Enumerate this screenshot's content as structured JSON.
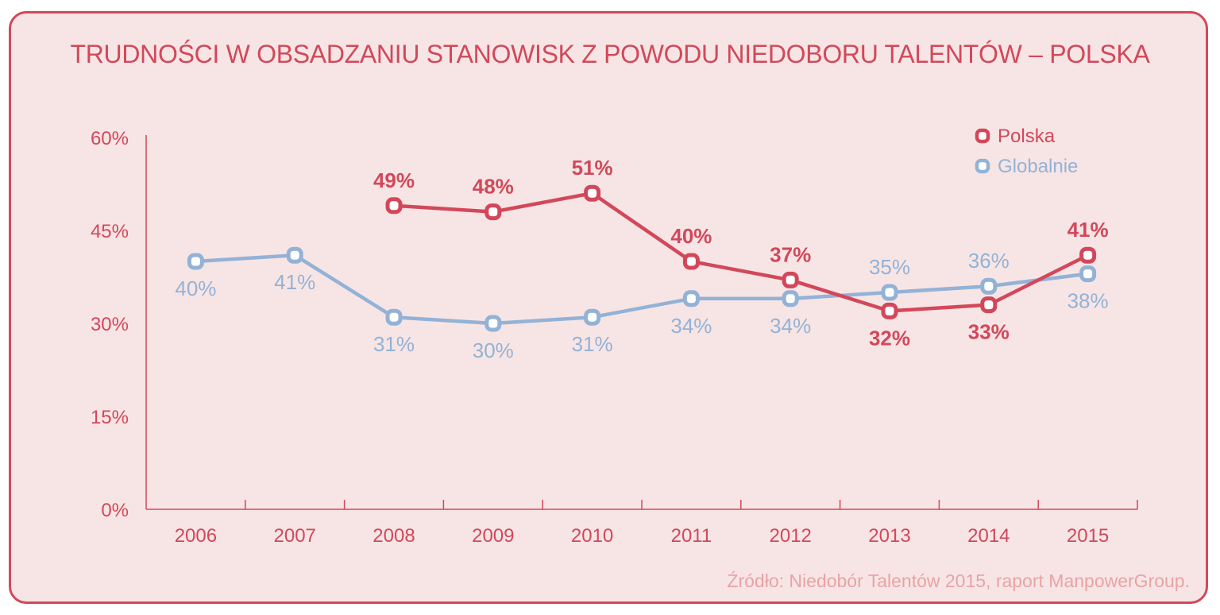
{
  "chart_data": {
    "type": "line",
    "title": "TRUDNOŚCI W OBSADZANIU STANOWISK Z POWODU NIEDOBORU TALENTÓW – POLSKA",
    "categories": [
      "2006",
      "2007",
      "2008",
      "2009",
      "2010",
      "2011",
      "2012",
      "2013",
      "2014",
      "2015"
    ],
    "ylim": [
      0,
      60
    ],
    "yticks": [
      "0%",
      "15%",
      "30%",
      "45%",
      "60%"
    ],
    "series": [
      {
        "name": "Polska",
        "color": "#d2485a",
        "values": [
          null,
          null,
          49,
          48,
          51,
          40,
          37,
          32,
          33,
          41
        ],
        "labels": [
          "",
          "",
          "49%",
          "48%",
          "51%",
          "40%",
          "37%",
          "32%",
          "33%",
          "41%"
        ],
        "label_pos": [
          "",
          "",
          "above",
          "above",
          "above",
          "above",
          "above",
          "below",
          "below",
          "above"
        ]
      },
      {
        "name": "Globalnie",
        "color": "#93b2d6",
        "values": [
          40,
          41,
          31,
          30,
          31,
          34,
          34,
          35,
          36,
          38
        ],
        "labels": [
          "40%",
          "41%",
          "31%",
          "30%",
          "31%",
          "34%",
          "34%",
          "35%",
          "36%",
          "38%"
        ],
        "label_pos": [
          "below",
          "below",
          "below",
          "below",
          "below",
          "below",
          "below",
          "above",
          "above",
          "below"
        ]
      }
    ],
    "legend": "top-right",
    "source": "Źródło: Niedobór Talentów 2015, raport ManpowerGroup."
  },
  "colors": {
    "accent": "#d2485a",
    "secondary": "#93b2d6",
    "background": "#f7e5e5",
    "source_text": "#e8a3a6"
  }
}
